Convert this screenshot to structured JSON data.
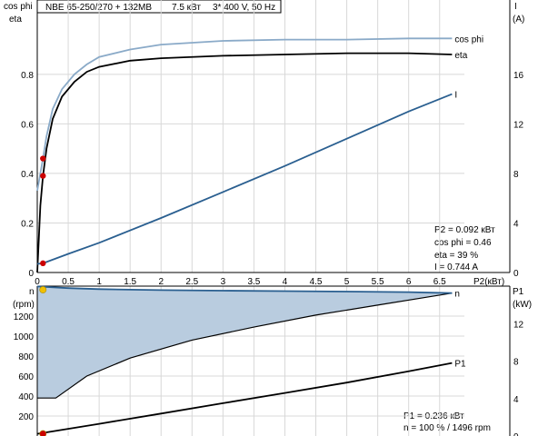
{
  "header": {
    "model": "NBE 65-250/270 + 132MB",
    "power": "7.5 кВт",
    "supply": "3* 400 V, 50 Hz"
  },
  "chart_data": [
    {
      "type": "line",
      "panel": "efficiency-current",
      "x_label": "P2(кВт)",
      "x_ticks": [
        "0",
        "0.5",
        "1",
        "1.5",
        "2",
        "2.5",
        "3",
        "3.5",
        "4",
        "4.5",
        "5",
        "5.5",
        "6",
        "6.5"
      ],
      "xlim": [
        0,
        6.9
      ],
      "left_axis": {
        "label_top": "cos phi",
        "label_bottom": "eta",
        "ticks": [
          "0",
          "0.2",
          "0.4",
          "0.6",
          "0.8"
        ],
        "ylim": [
          0,
          1.1
        ]
      },
      "right_axis": {
        "label_top": "I",
        "label_bottom": "(A)",
        "ticks": [
          "0",
          "4",
          "8",
          "12",
          "16"
        ],
        "ylim": [
          0,
          22
        ]
      },
      "grid": true,
      "series": [
        {
          "name": "cos phi",
          "axis": "left",
          "color": "#8aaac8",
          "x": [
            0,
            0.05,
            0.092,
            0.15,
            0.25,
            0.4,
            0.6,
            0.8,
            1.0,
            1.5,
            2.0,
            3.0,
            4.0,
            5.0,
            6.0,
            6.7
          ],
          "y": [
            0.33,
            0.4,
            0.46,
            0.55,
            0.66,
            0.74,
            0.8,
            0.84,
            0.87,
            0.9,
            0.92,
            0.935,
            0.94,
            0.94,
            0.945,
            0.945
          ]
        },
        {
          "name": "eta",
          "axis": "left",
          "color": "#000000",
          "x": [
            0,
            0.05,
            0.092,
            0.15,
            0.25,
            0.4,
            0.6,
            0.8,
            1.0,
            1.5,
            2.0,
            3.0,
            4.0,
            5.0,
            6.0,
            6.7
          ],
          "y": [
            0,
            0.27,
            0.39,
            0.5,
            0.62,
            0.71,
            0.77,
            0.81,
            0.83,
            0.855,
            0.865,
            0.875,
            0.88,
            0.885,
            0.885,
            0.88
          ]
        },
        {
          "name": "I",
          "axis": "right",
          "color": "#2a5f90",
          "x": [
            0,
            0.092,
            0.5,
            1.0,
            2.0,
            3.0,
            4.0,
            5.0,
            6.0,
            6.7
          ],
          "y": [
            0.7,
            0.744,
            1.5,
            2.4,
            4.4,
            6.5,
            8.6,
            10.8,
            13.0,
            14.4
          ]
        }
      ],
      "markers": [
        {
          "series": "eta",
          "x": 0.092,
          "y": 0.39,
          "color": "#cc0000"
        },
        {
          "series": "cos phi",
          "x": 0.092,
          "y": 0.46,
          "color": "#cc0000"
        },
        {
          "series": "I",
          "x": 0.092,
          "y": 0.744,
          "color": "#cc0000"
        }
      ],
      "readout": [
        "P2  = 0.092 кВт",
        "cos phi = 0.46",
        "eta   = 39 %",
        "I    = 0.744 A"
      ]
    },
    {
      "type": "area",
      "panel": "speed-power",
      "left_axis": {
        "label_top": "n",
        "label_bottom": "(rpm)",
        "ticks": [
          "200",
          "400",
          "600",
          "800",
          "1000",
          "1200"
        ],
        "ylim": [
          0,
          1500
        ]
      },
      "right_axis": {
        "label_top": "P1",
        "label_bottom": "(kW)",
        "ticks": [
          "0",
          "4",
          "8",
          "12"
        ],
        "ylim": [
          0,
          16
        ]
      },
      "xlim": [
        0,
        6.9
      ],
      "grid": true,
      "series": [
        {
          "name": "n",
          "axis": "left",
          "color": "#2a5f90",
          "fill": "#b9ccdf",
          "x": [
            0,
            0.5,
            1,
            2,
            3,
            4,
            5,
            6,
            6.7
          ],
          "y": [
            1496,
            1480,
            1470,
            1460,
            1455,
            1450,
            1445,
            1440,
            1430
          ],
          "fill_lower_x": [
            0,
            0.3,
            0.8,
            1.5,
            2.5,
            3.5,
            4.5,
            5.5,
            6.2,
            6.7
          ],
          "fill_lower_y": [
            380,
            380,
            600,
            780,
            960,
            1090,
            1210,
            1310,
            1380,
            1430
          ]
        },
        {
          "name": "P1",
          "axis": "right",
          "color": "#000000",
          "x": [
            0,
            1,
            2,
            3,
            4,
            5,
            6,
            6.7
          ],
          "y": [
            0.236,
            1.3,
            2.4,
            3.5,
            4.6,
            5.7,
            6.9,
            7.8
          ]
        }
      ],
      "markers": [
        {
          "series": "P1",
          "x": 0.092,
          "y": 0.236,
          "color": "#cc0000"
        },
        {
          "series": "n",
          "x": 0.092,
          "y": 1496,
          "color": "#f0c000"
        }
      ],
      "readout": [
        "P1  = 0.236 кВт",
        "n   = 100 % / 1496 rpm"
      ]
    }
  ]
}
